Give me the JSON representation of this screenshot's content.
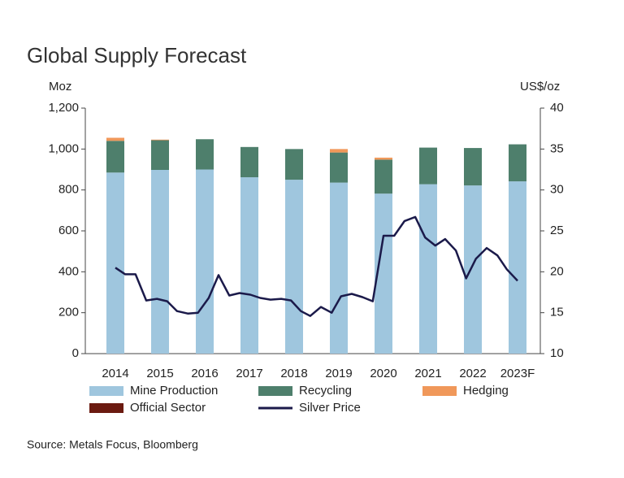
{
  "chart_data": {
    "type": "bar",
    "title": "Global Supply Forecast",
    "y_label": "Moz",
    "y2_label": "US$/oz",
    "source": "Source: Metals Focus, Bloomberg",
    "categories": [
      "2014",
      "2015",
      "2016",
      "2017",
      "2018",
      "2019",
      "2020",
      "2021",
      "2022",
      "2023F"
    ],
    "ylim": [
      0,
      1200
    ],
    "yticks": [
      0,
      200,
      400,
      600,
      800,
      {
        "value": 1000,
        "label": "1,000"
      },
      {
        "value": 1200,
        "label": "1,200"
      }
    ],
    "y2lim": [
      10,
      40
    ],
    "y2ticks": [
      10,
      15,
      20,
      25,
      30,
      35,
      40
    ],
    "xlim": [
      2013.5,
      2023.5
    ],
    "series": [
      {
        "name": "Mine Production",
        "color": "#9fc6de",
        "values": [
          885,
          898,
          900,
          862,
          850,
          836,
          782,
          828,
          822,
          842
        ]
      },
      {
        "name": "Recycling",
        "color": "#4e7f6c",
        "values": [
          155,
          145,
          148,
          148,
          150,
          147,
          166,
          179,
          183,
          181
        ]
      },
      {
        "name": "Hedging",
        "color": "#f0985a",
        "values": [
          15,
          3,
          0,
          0,
          0,
          17,
          10,
          0,
          0,
          0
        ]
      },
      {
        "name": "Official Sector",
        "color": "#6b1a10",
        "values": [
          0,
          0,
          0,
          0,
          0,
          0,
          0,
          0,
          0,
          0
        ]
      },
      {
        "name": "Silver Price",
        "color": "#1b1a4a",
        "type": "line",
        "axis": "y2",
        "x": [
          2014.0,
          2014.22,
          2014.45,
          2014.69,
          2014.93,
          2015.16,
          2015.38,
          2015.62,
          2015.85,
          2016.09,
          2016.31,
          2016.55,
          2016.78,
          2017.02,
          2017.24,
          2017.47,
          2017.71,
          2017.93,
          2018.15,
          2018.36,
          2018.6,
          2018.84,
          2019.05,
          2019.29,
          2019.53,
          2019.76,
          2020.0,
          2020.24,
          2020.47,
          2020.71,
          2020.93,
          2021.16,
          2021.38,
          2021.62,
          2021.85,
          2022.07,
          2022.31,
          2022.55,
          2022.76,
          2023.0
        ],
        "values": [
          20.5,
          19.7,
          19.7,
          16.5,
          16.7,
          16.4,
          15.2,
          14.9,
          15.0,
          16.8,
          19.6,
          17.1,
          17.4,
          17.2,
          16.8,
          16.6,
          16.7,
          16.5,
          15.2,
          14.6,
          15.7,
          15.0,
          17.0,
          17.3,
          16.9,
          16.4,
          24.4,
          24.4,
          26.2,
          26.7,
          24.2,
          23.2,
          24.0,
          22.6,
          19.2,
          21.6,
          22.9,
          22.0,
          20.3,
          18.9
        ]
      }
    ]
  }
}
